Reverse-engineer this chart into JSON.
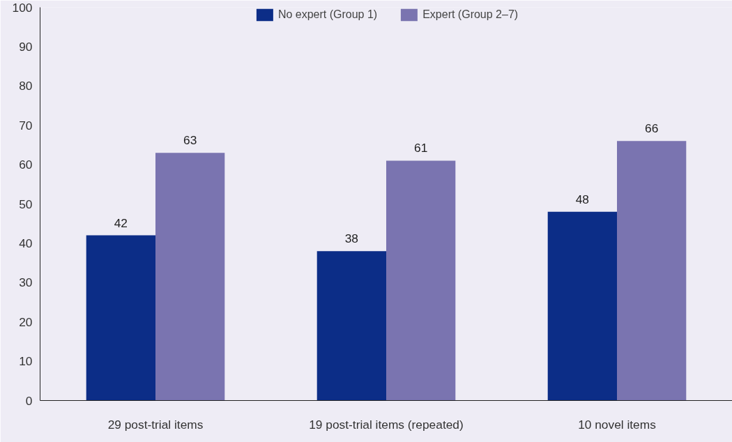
{
  "chart_data": {
    "type": "bar",
    "categories": [
      "29 post-trial items",
      "19 post-trial items (repeated)",
      "10 novel items"
    ],
    "series": [
      {
        "name": "No expert (Group 1)",
        "color": "#0c2d87",
        "values": [
          42,
          38,
          48
        ]
      },
      {
        "name": "Expert (Group 2–7)",
        "color": "#7a74b0",
        "values": [
          63,
          61,
          66
        ]
      }
    ],
    "ylim": [
      0,
      100
    ],
    "yticks": [
      0,
      10,
      20,
      30,
      40,
      50,
      60,
      70,
      80,
      90,
      100
    ],
    "data_labels": true,
    "grid": false,
    "legend": "top"
  }
}
